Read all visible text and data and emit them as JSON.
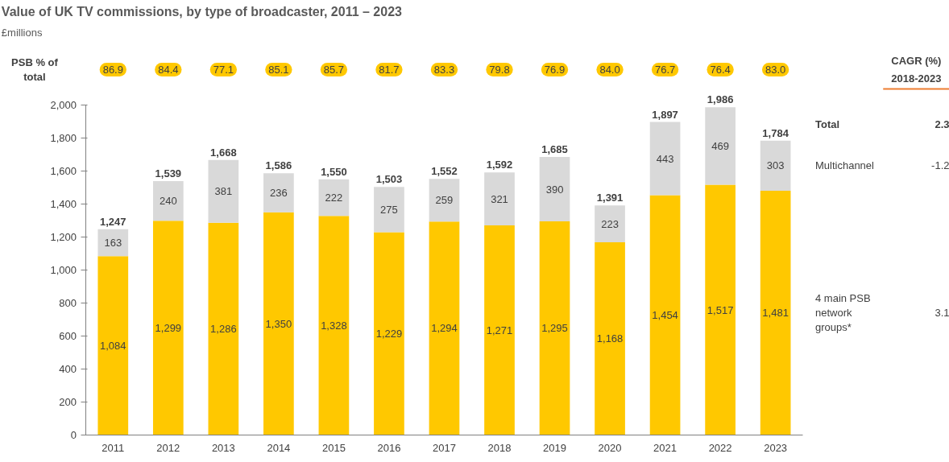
{
  "chart_data": {
    "type": "bar",
    "stacked": true,
    "title": "Value of UK TV commissions, by type of broadcaster, 2011 – 2023",
    "subtitle": "£millions",
    "categories": [
      "2011",
      "2012",
      "2013",
      "2014",
      "2015",
      "2016",
      "2017",
      "2018",
      "2019",
      "2020",
      "2021",
      "2022",
      "2023"
    ],
    "series": [
      {
        "name": "4 main PSB network groups*",
        "color": "#ffc800",
        "values": [
          1084,
          1299,
          1286,
          1350,
          1328,
          1229,
          1294,
          1271,
          1295,
          1168,
          1454,
          1517,
          1481
        ],
        "value_labels": [
          "1,084",
          "1,299",
          "1,286",
          "1,350",
          "1,328",
          "1,229",
          "1,294",
          "1,271",
          "1,295",
          "1,168",
          "1,454",
          "1,517",
          "1,481"
        ]
      },
      {
        "name": "Multichannel",
        "color": "#d9d9d9",
        "values": [
          163,
          240,
          381,
          236,
          222,
          275,
          259,
          321,
          390,
          223,
          443,
          469,
          303
        ],
        "value_labels": [
          "163",
          "240",
          "381",
          "236",
          "222",
          "275",
          "259",
          "321",
          "390",
          "223",
          "443",
          "469",
          "303"
        ]
      }
    ],
    "totals": [
      "1,247",
      "1,539",
      "1,668",
      "1,586",
      "1,550",
      "1,503",
      "1,552",
      "1,592",
      "1,685",
      "1,391",
      "1,897",
      "1,986",
      "1,784"
    ],
    "ylim": [
      0,
      2000
    ],
    "yticks": [
      0,
      200,
      400,
      600,
      800,
      {
        "value": 1000,
        "label": "1,000"
      },
      {
        "value": 1200,
        "label": "1,200"
      },
      {
        "value": 1400,
        "label": "1,400"
      },
      {
        "value": 1600,
        "label": "1,600"
      },
      {
        "value": 1800,
        "label": "1,800"
      },
      {
        "value": 2000,
        "label": "2,000"
      }
    ],
    "grid": false,
    "legend": false,
    "annotations": [
      "PSB % of total",
      "86.9",
      "84.4",
      "77.1",
      "85.1",
      "85.7",
      "81.7",
      "83.3",
      "79.8",
      "76.9",
      "84.0",
      "76.7",
      "76.4",
      "83.0",
      "CAGR (%)",
      "2018-2023",
      "Total",
      "2.3",
      "-1.2",
      "3.1"
    ]
  }
}
